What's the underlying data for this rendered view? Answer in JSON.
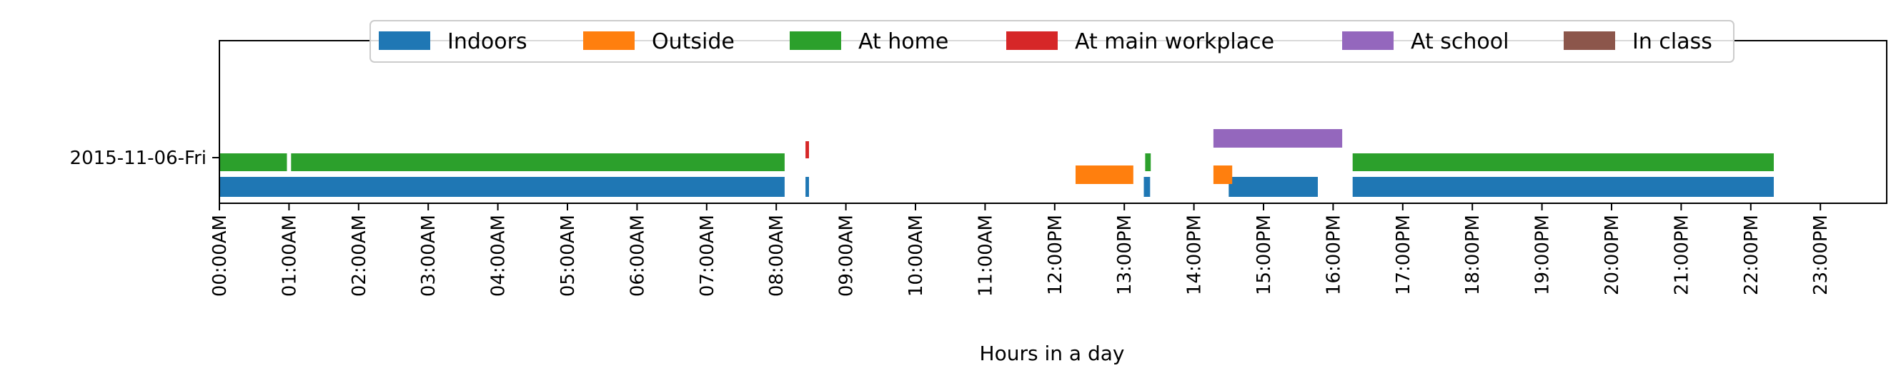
{
  "chart_data": {
    "type": "bar",
    "orientation": "horizontal-timeline",
    "title": "",
    "xlabel": "Hours in a day",
    "ylabel": "",
    "xlim_hours": [
      0,
      24
    ],
    "x_tick_labels": [
      "00:00AM",
      "01:00AM",
      "02:00AM",
      "03:00AM",
      "04:00AM",
      "05:00AM",
      "06:00AM",
      "07:00AM",
      "08:00AM",
      "09:00AM",
      "10:00AM",
      "11:00AM",
      "12:00PM",
      "13:00PM",
      "14:00PM",
      "15:00PM",
      "16:00PM",
      "17:00PM",
      "18:00PM",
      "19:00PM",
      "20:00PM",
      "21:00PM",
      "22:00PM",
      "23:00PM"
    ],
    "categories": [
      "2015-11-06-Fri"
    ],
    "grid": false,
    "legend_placement": "top-center",
    "series": [
      {
        "name": "Indoors",
        "color": "#1f77b4",
        "intervals": [
          [
            0.0,
            8.12
          ],
          [
            8.42,
            8.47
          ],
          [
            13.28,
            13.37
          ],
          [
            14.5,
            15.78
          ],
          [
            16.28,
            22.33
          ]
        ]
      },
      {
        "name": "Outside",
        "color": "#ff7f0e",
        "intervals": [
          [
            12.3,
            13.13
          ],
          [
            14.28,
            14.55
          ]
        ]
      },
      {
        "name": "At home",
        "color": "#2ca02c",
        "intervals": [
          [
            0.0,
            0.97
          ],
          [
            1.03,
            8.12
          ],
          [
            13.3,
            13.38
          ],
          [
            16.28,
            22.33
          ]
        ]
      },
      {
        "name": "At main workplace",
        "color": "#d62728",
        "intervals": [
          [
            8.42,
            8.47
          ]
        ]
      },
      {
        "name": "At school",
        "color": "#9467bd",
        "intervals": [
          [
            14.28,
            16.13
          ]
        ]
      },
      {
        "name": "In class",
        "color": "#8c564b",
        "intervals": []
      }
    ]
  }
}
